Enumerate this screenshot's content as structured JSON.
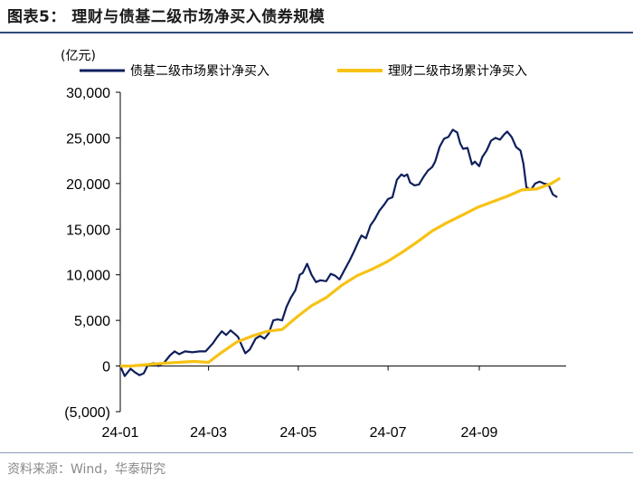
{
  "title": "图表5：  理财与债基二级市场净买入债券规模",
  "source": "资料来源：Wind，华泰研究",
  "chart_data": {
    "type": "line",
    "unit": "(亿元)",
    "ylim": [
      -5000,
      30000
    ],
    "yticks": [
      -5000,
      0,
      5000,
      10000,
      15000,
      20000,
      25000,
      30000
    ],
    "ytick_labels": [
      "(5,000)",
      "0",
      "5,000",
      "10,000",
      "15,000",
      "20,000",
      "25,000",
      "30,000"
    ],
    "xlim": [
      "2024-01-01",
      "2024-10-30"
    ],
    "xtick_dates": [
      "2024-01-01",
      "2024-03-01",
      "2024-05-01",
      "2024-07-01",
      "2024-09-01"
    ],
    "xtick_labels": [
      "24-01",
      "24-03",
      "24-05",
      "24-07",
      "24-09"
    ],
    "legend_position": "top",
    "grid": false,
    "series": [
      {
        "name": "债基二级市场累计净买入",
        "color": "#0f1f5c",
        "points": [
          [
            "2024-01-01",
            0
          ],
          [
            "2024-01-04",
            -1100
          ],
          [
            "2024-01-08",
            -300
          ],
          [
            "2024-01-11",
            -700
          ],
          [
            "2024-01-14",
            -1000
          ],
          [
            "2024-01-17",
            -800
          ],
          [
            "2024-01-20",
            200
          ],
          [
            "2024-01-24",
            300
          ],
          [
            "2024-01-27",
            0
          ],
          [
            "2024-01-31",
            400
          ],
          [
            "2024-02-04",
            1200
          ],
          [
            "2024-02-07",
            1600
          ],
          [
            "2024-02-10",
            1300
          ],
          [
            "2024-02-14",
            1600
          ],
          [
            "2024-02-19",
            1500
          ],
          [
            "2024-02-24",
            1600
          ],
          [
            "2024-02-28",
            1600
          ],
          [
            "2024-03-04",
            2500
          ],
          [
            "2024-03-07",
            3200
          ],
          [
            "2024-03-10",
            3800
          ],
          [
            "2024-03-13",
            3400
          ],
          [
            "2024-03-16",
            3900
          ],
          [
            "2024-03-19",
            3500
          ],
          [
            "2024-03-21",
            3200
          ],
          [
            "2024-03-24",
            2100
          ],
          [
            "2024-03-26",
            1400
          ],
          [
            "2024-03-29",
            1800
          ],
          [
            "2024-04-02",
            3000
          ],
          [
            "2024-04-05",
            3300
          ],
          [
            "2024-04-08",
            3000
          ],
          [
            "2024-04-11",
            3600
          ],
          [
            "2024-04-14",
            5000
          ],
          [
            "2024-04-17",
            5100
          ],
          [
            "2024-04-20",
            5000
          ],
          [
            "2024-04-23",
            6500
          ],
          [
            "2024-04-26",
            7500
          ],
          [
            "2024-04-29",
            8300
          ],
          [
            "2024-05-02",
            10000
          ],
          [
            "2024-05-04",
            10200
          ],
          [
            "2024-05-07",
            11200
          ],
          [
            "2024-05-10",
            10000
          ],
          [
            "2024-05-13",
            9200
          ],
          [
            "2024-05-16",
            9400
          ],
          [
            "2024-05-20",
            9300
          ],
          [
            "2024-05-23",
            10100
          ],
          [
            "2024-05-26",
            9900
          ],
          [
            "2024-05-29",
            9500
          ],
          [
            "2024-06-02",
            10700
          ],
          [
            "2024-06-05",
            11600
          ],
          [
            "2024-06-08",
            12600
          ],
          [
            "2024-06-11",
            13700
          ],
          [
            "2024-06-13",
            14300
          ],
          [
            "2024-06-16",
            14000
          ],
          [
            "2024-06-19",
            15400
          ],
          [
            "2024-06-22",
            16100
          ],
          [
            "2024-06-25",
            17000
          ],
          [
            "2024-06-28",
            17600
          ],
          [
            "2024-07-01",
            18300
          ],
          [
            "2024-07-04",
            18500
          ],
          [
            "2024-07-07",
            20400
          ],
          [
            "2024-07-10",
            21000
          ],
          [
            "2024-07-12",
            20800
          ],
          [
            "2024-07-14",
            21000
          ],
          [
            "2024-07-16",
            20100
          ],
          [
            "2024-07-19",
            19800
          ],
          [
            "2024-07-22",
            19900
          ],
          [
            "2024-07-25",
            20700
          ],
          [
            "2024-07-28",
            21400
          ],
          [
            "2024-07-31",
            21800
          ],
          [
            "2024-08-02",
            22400
          ],
          [
            "2024-08-05",
            24000
          ],
          [
            "2024-08-08",
            24900
          ],
          [
            "2024-08-11",
            25100
          ],
          [
            "2024-08-14",
            25900
          ],
          [
            "2024-08-17",
            25600
          ],
          [
            "2024-08-19",
            24400
          ],
          [
            "2024-08-21",
            23800
          ],
          [
            "2024-08-24",
            23900
          ],
          [
            "2024-08-27",
            22100
          ],
          [
            "2024-08-29",
            22400
          ],
          [
            "2024-09-01",
            21900
          ],
          [
            "2024-09-03",
            22900
          ],
          [
            "2024-09-06",
            23600
          ],
          [
            "2024-09-09",
            24700
          ],
          [
            "2024-09-12",
            25000
          ],
          [
            "2024-09-15",
            24800
          ],
          [
            "2024-09-18",
            25400
          ],
          [
            "2024-09-20",
            25700
          ],
          [
            "2024-09-23",
            25100
          ],
          [
            "2024-09-26",
            24000
          ],
          [
            "2024-09-29",
            23600
          ],
          [
            "2024-10-01",
            22200
          ],
          [
            "2024-10-03",
            19600
          ],
          [
            "2024-10-06",
            19300
          ],
          [
            "2024-10-09",
            20000
          ],
          [
            "2024-10-12",
            20200
          ],
          [
            "2024-10-15",
            20000
          ],
          [
            "2024-10-18",
            19900
          ],
          [
            "2024-10-21",
            18800
          ],
          [
            "2024-10-24",
            18500
          ]
        ]
      },
      {
        "name": "理财二级市场累计净买入",
        "color": "#f7c214",
        "points": [
          [
            "2024-01-01",
            0
          ],
          [
            "2024-01-08",
            0
          ],
          [
            "2024-01-15",
            100
          ],
          [
            "2024-01-22",
            200
          ],
          [
            "2024-01-31",
            300
          ],
          [
            "2024-02-10",
            400
          ],
          [
            "2024-02-20",
            500
          ],
          [
            "2024-03-01",
            400
          ],
          [
            "2024-03-10",
            1500
          ],
          [
            "2024-03-20",
            2600
          ],
          [
            "2024-03-31",
            3300
          ],
          [
            "2024-04-10",
            3800
          ],
          [
            "2024-04-20",
            4000
          ],
          [
            "2024-05-01",
            5500
          ],
          [
            "2024-05-10",
            6600
          ],
          [
            "2024-05-20",
            7500
          ],
          [
            "2024-05-31",
            8900
          ],
          [
            "2024-06-10",
            9900
          ],
          [
            "2024-06-20",
            10600
          ],
          [
            "2024-06-30",
            11400
          ],
          [
            "2024-07-10",
            12400
          ],
          [
            "2024-07-20",
            13500
          ],
          [
            "2024-07-31",
            14800
          ],
          [
            "2024-08-10",
            15700
          ],
          [
            "2024-08-20",
            16500
          ],
          [
            "2024-08-31",
            17400
          ],
          [
            "2024-09-10",
            18000
          ],
          [
            "2024-09-20",
            18600
          ],
          [
            "2024-09-30",
            19300
          ],
          [
            "2024-10-10",
            19400
          ],
          [
            "2024-10-20",
            20000
          ],
          [
            "2024-10-26",
            20600
          ]
        ]
      }
    ]
  }
}
